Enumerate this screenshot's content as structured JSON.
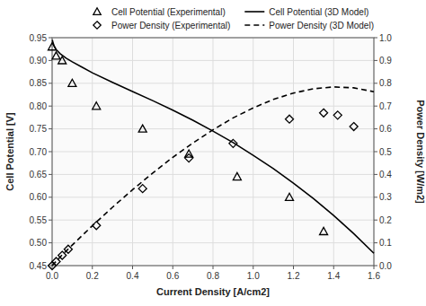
{
  "chart_data": {
    "type": "line",
    "xlabel": "Current Density [A/cm2]",
    "ylabel": "Cell Potential [V]",
    "y2label": "Power Density [W/m2]",
    "xlim": [
      0,
      1.6
    ],
    "ylim": [
      0.45,
      0.95
    ],
    "y2lim": [
      0,
      1.0
    ],
    "xticks": [
      {
        "value": 0,
        "label": "0.0"
      },
      0.2,
      0.4,
      0.6,
      0.8,
      {
        "value": 1.0,
        "label": "1.0"
      },
      1.2,
      1.4,
      1.6
    ],
    "yticks": [
      0.45,
      {
        "value": 0.5,
        "label": "0.50"
      },
      0.55,
      {
        "value": 0.6,
        "label": "0.60"
      },
      0.65,
      {
        "value": 0.7,
        "label": "0.70"
      },
      0.75,
      {
        "value": 0.8,
        "label": "0.80"
      },
      0.85,
      {
        "value": 0.9,
        "label": "0.90"
      },
      0.95
    ],
    "y2ticks": [
      {
        "value": 0,
        "label": "0.0"
      },
      0.1,
      0.2,
      0.3,
      0.4,
      0.5,
      0.6,
      0.7,
      0.8,
      0.9,
      {
        "value": 1.0,
        "label": "1.0"
      }
    ],
    "grid": true,
    "legend": "upper right",
    "series": [
      {
        "name": "Cell Potential (Experimental)",
        "type": "scatter",
        "marker": "triangle",
        "color": "#000000",
        "x": [
          0.0,
          0.02,
          0.05,
          0.1,
          0.22,
          0.45,
          0.68,
          0.92,
          1.18,
          1.35
        ],
        "values": [
          0.93,
          0.91,
          0.9,
          0.85,
          0.8,
          0.75,
          0.695,
          0.645,
          0.6,
          0.525
        ]
      },
      {
        "name": "Cell Potential (3D Model)",
        "type": "line",
        "line_style": "solid",
        "color": "#000000",
        "x": [
          0.001,
          0.005,
          0.01,
          0.02,
          0.04,
          0.07,
          0.1,
          0.15,
          0.2,
          0.3,
          0.4,
          0.5,
          0.6,
          0.7,
          0.8,
          0.9,
          1.0,
          1.1,
          1.2,
          1.3,
          1.4,
          1.5,
          1.6
        ],
        "values": [
          0.945,
          0.938,
          0.932,
          0.924,
          0.915,
          0.905,
          0.897,
          0.885,
          0.873,
          0.852,
          0.832,
          0.812,
          0.791,
          0.769,
          0.745,
          0.72,
          0.692,
          0.663,
          0.631,
          0.597,
          0.56,
          0.52,
          0.477
        ]
      },
      {
        "name": "Power Density (Experimental)",
        "type": "scatter",
        "marker": "diamond",
        "color": "#000000",
        "axis": "y2",
        "x": [
          0.0,
          0.02,
          0.05,
          0.08,
          0.22,
          0.45,
          0.68,
          0.9,
          1.18,
          1.35,
          1.42,
          1.5
        ],
        "values": [
          0.0,
          0.018,
          0.045,
          0.072,
          0.176,
          0.338,
          0.472,
          0.536,
          0.643,
          0.67,
          0.66,
          0.61
        ]
      },
      {
        "name": "Power Density (3D Model)",
        "type": "line",
        "line_style": "dashed",
        "color": "#000000",
        "axis": "y2",
        "x": [
          0.0,
          0.05,
          0.1,
          0.2,
          0.3,
          0.4,
          0.5,
          0.6,
          0.7,
          0.8,
          0.9,
          1.0,
          1.1,
          1.2,
          1.3,
          1.4,
          1.5,
          1.6
        ],
        "values": [
          0.0,
          0.047,
          0.09,
          0.175,
          0.256,
          0.333,
          0.406,
          0.475,
          0.538,
          0.596,
          0.648,
          0.692,
          0.729,
          0.757,
          0.776,
          0.784,
          0.78,
          0.763
        ]
      }
    ]
  }
}
